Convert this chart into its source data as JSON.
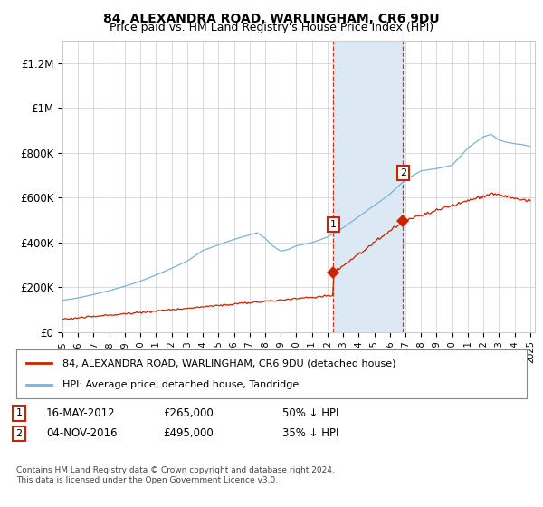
{
  "title": "84, ALEXANDRA ROAD, WARLINGHAM, CR6 9DU",
  "subtitle": "Price paid vs. HM Land Registry's House Price Index (HPI)",
  "hpi_label": "HPI: Average price, detached house, Tandridge",
  "property_label": "84, ALEXANDRA ROAD, WARLINGHAM, CR6 9DU (detached house)",
  "footnote": "Contains HM Land Registry data © Crown copyright and database right 2024.\nThis data is licensed under the Open Government Licence v3.0.",
  "sale1_date": "16-MAY-2012",
  "sale1_price": "£265,000",
  "sale1_pct": "50% ↓ HPI",
  "sale1_year": 2012.37,
  "sale1_value": 265000,
  "sale2_date": "04-NOV-2016",
  "sale2_price": "£495,000",
  "sale2_pct": "35% ↓ HPI",
  "sale2_year": 2016.84,
  "sale2_value": 495000,
  "hpi_color": "#7ab3d4",
  "property_color": "#cc2200",
  "shade_color": "#dce9f5",
  "grid_color": "#cccccc",
  "background_color": "#ffffff",
  "ylim": [
    0,
    1300000
  ],
  "yticks": [
    0,
    200000,
    400000,
    600000,
    800000,
    1000000,
    1200000
  ],
  "ytick_labels": [
    "£0",
    "£200K",
    "£400K",
    "£600K",
    "£800K",
    "£1M",
    "£1.2M"
  ]
}
